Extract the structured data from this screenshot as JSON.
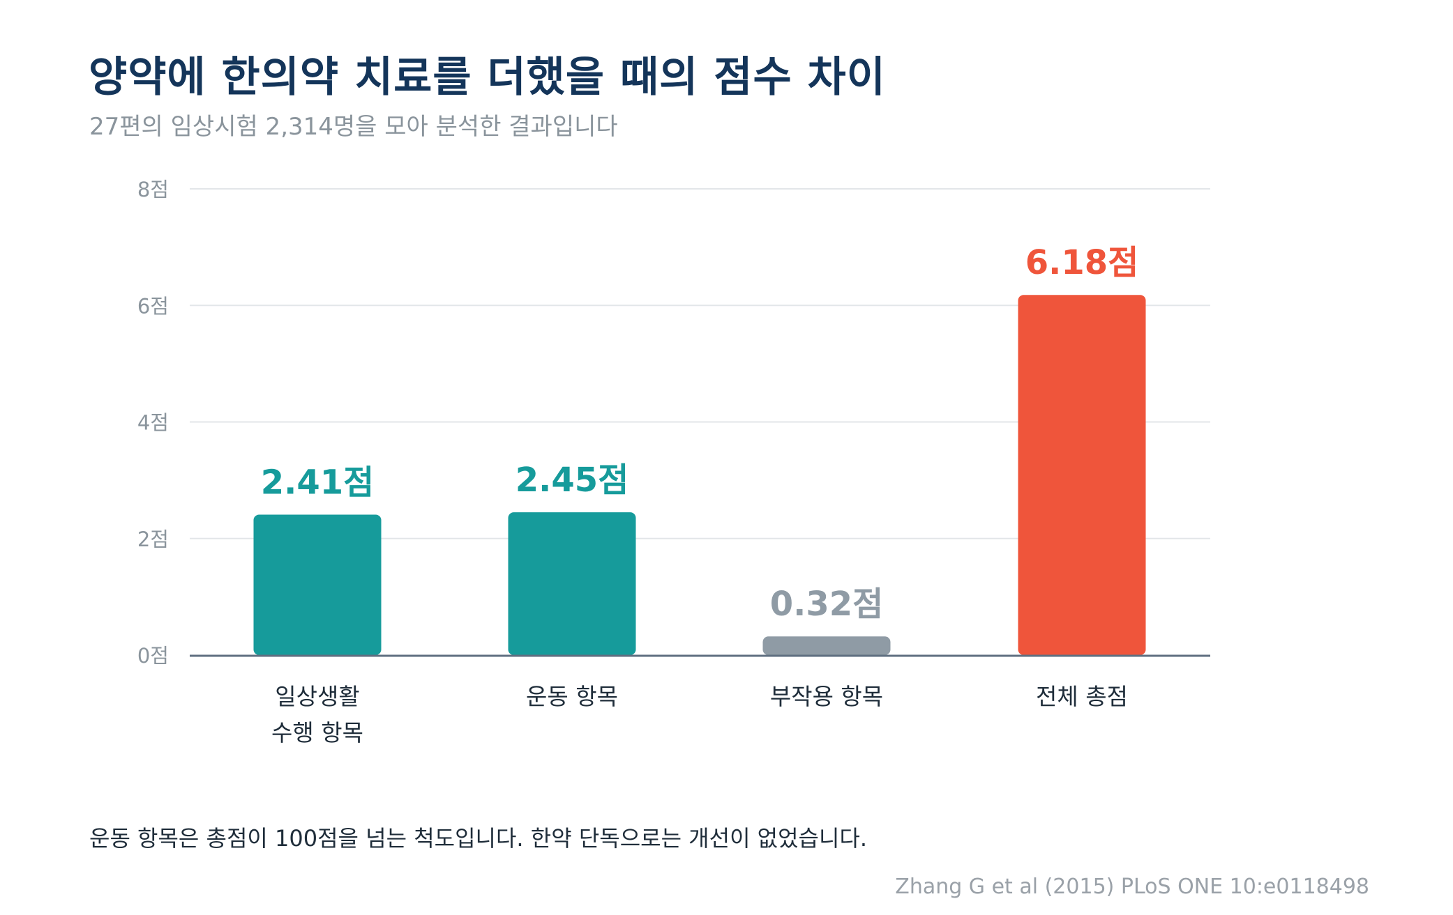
{
  "header": {
    "title": "양약에 한의약 치료를 더했을 때의 점수 차이",
    "subtitle": "27편의 임상시험 2,314명을 모아 분석한 결과입니다"
  },
  "chart_data": {
    "type": "bar",
    "categories": [
      [
        "일상생활",
        "수행 항목"
      ],
      [
        "운동 항목"
      ],
      [
        "부작용 항목"
      ],
      [
        "전체 총점"
      ]
    ],
    "values": [
      2.41,
      2.45,
      0.32,
      6.18
    ],
    "value_labels": [
      "2.41점",
      "2.45점",
      "0.32점",
      "6.18점"
    ],
    "bar_colors": [
      "#169b9b",
      "#169b9b",
      "#8f9ba5",
      "#ef553b"
    ],
    "ylim": [
      0,
      8
    ],
    "yticks": [
      0,
      2,
      4,
      6,
      8
    ],
    "ytick_labels": [
      "0점",
      "2점",
      "4점",
      "6점",
      "8점"
    ],
    "grid": true,
    "legend": "none"
  },
  "footer": {
    "note": "운동 항목은 총점이 100점을 넘는 척도입니다. 한약 단독으로는 개선이 없었습니다.",
    "source": "Zhang G et al (2015) PLoS ONE 10:e0118498"
  },
  "colors": {
    "title": "#14355a",
    "subtitle": "#8a949c",
    "teal": "#169b9b",
    "gray": "#8f9ba5",
    "red": "#ef553b",
    "grid": "#e3e6e9",
    "baseline": "#5f6f80"
  }
}
